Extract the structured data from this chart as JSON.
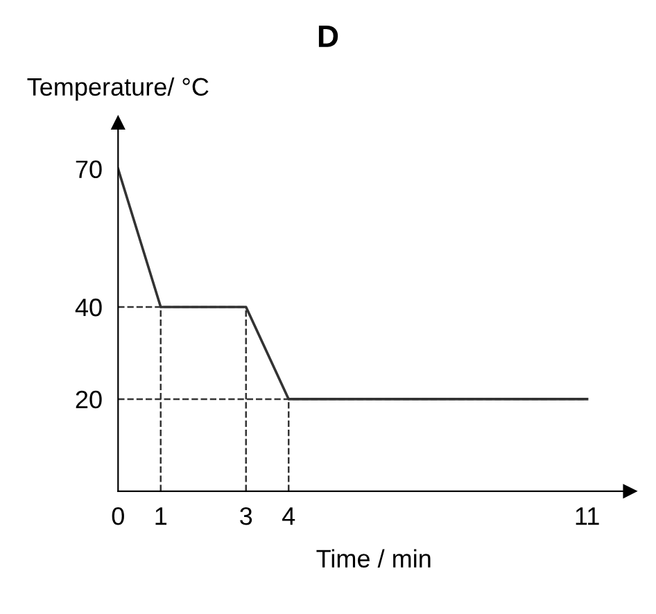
{
  "chart_data": {
    "type": "line",
    "title": "D",
    "xlabel": "Time / min",
    "ylabel": "Temperature/ °C",
    "x": [
      0,
      1,
      3,
      4,
      11
    ],
    "series": [
      {
        "color": "#333333",
        "values": [
          70,
          40,
          40,
          20,
          20
        ]
      }
    ],
    "xlim": [
      0,
      12
    ],
    "ylim": [
      0,
      80
    ],
    "xticks": [
      0,
      1,
      3,
      4,
      11
    ],
    "yticks": [
      20,
      40,
      70
    ],
    "ref_lines": [
      {
        "axis": "y",
        "value": 40,
        "line_style": "dashed",
        "color": "#333333"
      },
      {
        "axis": "y",
        "value": 20,
        "line_style": "dashed",
        "color": "#333333"
      },
      {
        "axis": "x",
        "value": 1,
        "line_style": "dashed",
        "color": "#333333"
      },
      {
        "axis": "x",
        "value": 3,
        "line_style": "dashed",
        "color": "#333333"
      },
      {
        "axis": "x",
        "value": 4,
        "line_style": "dashed",
        "color": "#333333"
      }
    ],
    "grid": false,
    "marker": "none",
    "line_style": "solid"
  }
}
